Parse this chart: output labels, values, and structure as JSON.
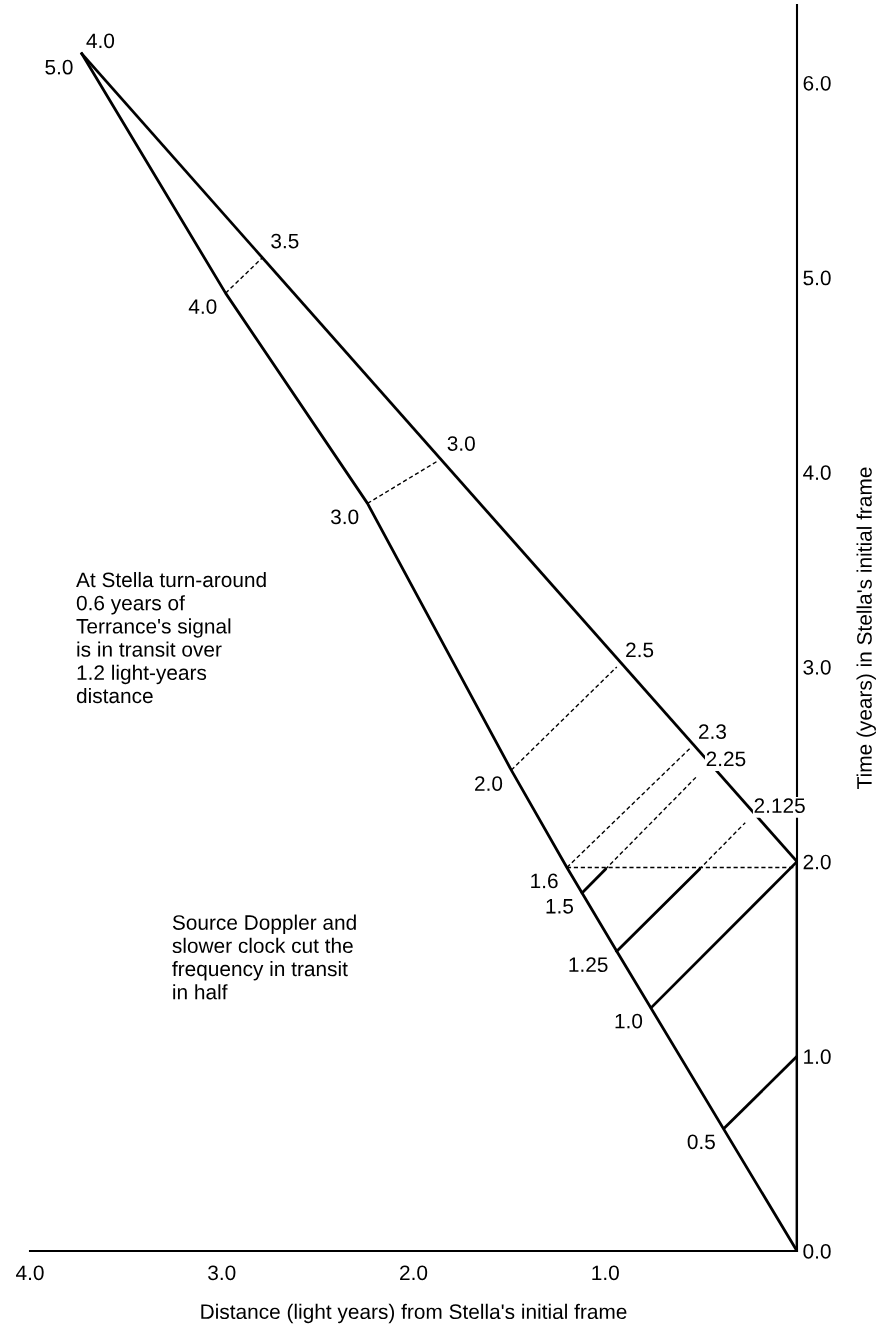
{
  "chart_data": {
    "type": "line",
    "xlabel": "Distance (light years) from Stella's initial frame",
    "ylabel": "Time (years) in Stella's initial frame",
    "xlim": [
      4.0,
      0
    ],
    "ylim": [
      0,
      6.4
    ],
    "xticks": [
      {
        "value": 4,
        "label": "4.0"
      },
      {
        "value": 3,
        "label": "3.0"
      },
      {
        "value": 2,
        "label": "2.0"
      },
      {
        "value": 1,
        "label": "1.0"
      }
    ],
    "yticks": [
      {
        "value": 0,
        "label": "0.0"
      },
      {
        "value": 1,
        "label": "1.0"
      },
      {
        "value": 2,
        "label": "2.0"
      },
      {
        "value": 3,
        "label": "3.0"
      },
      {
        "value": 4,
        "label": "4.0"
      },
      {
        "value": 5,
        "label": "5.0"
      },
      {
        "value": 6,
        "label": "6.0"
      }
    ],
    "series": [
      {
        "color": "#000000",
        "line_style": "solid",
        "x": [
          0,
          0.94,
          1.2,
          1.49,
          2.24,
          2.98,
          3.73
        ],
        "values": [
          0,
          1.54,
          1.97,
          2.47,
          3.84,
          4.92,
          6.15
        ]
      },
      {
        "color": "#000000",
        "line_style": "solid",
        "x": [
          0,
          3.73
        ],
        "values": [
          2.0,
          6.15
        ]
      },
      {
        "color": "#000000",
        "line_style": "solid",
        "x": [
          0,
          0
        ],
        "values": [
          0,
          2.0
        ]
      },
      {
        "color": "#000000",
        "line_style": "solid",
        "x": [
          0.38,
          0
        ],
        "values": [
          0.63,
          1.0
        ]
      },
      {
        "color": "#000000",
        "line_style": "solid",
        "x": [
          0.76,
          0
        ],
        "values": [
          1.25,
          2.0
        ]
      },
      {
        "color": "#000000",
        "line_style": "solid",
        "x": [
          0.94,
          0.51
        ],
        "values": [
          1.54,
          1.96
        ]
      },
      {
        "color": "#000000",
        "line_style": "dashed",
        "x": [
          0.51,
          0.27
        ],
        "values": [
          1.96,
          2.2
        ]
      },
      {
        "color": "#000000",
        "line_style": "solid",
        "x": [
          1.12,
          1.0
        ],
        "values": [
          1.84,
          1.96
        ]
      },
      {
        "color": "#000000",
        "line_style": "dashed",
        "x": [
          1.0,
          0.52
        ],
        "values": [
          1.96,
          2.44
        ]
      },
      {
        "color": "#000000",
        "line_style": "dashed",
        "x": [
          1.2,
          0.56
        ],
        "values": [
          1.97,
          2.58
        ]
      },
      {
        "color": "#000000",
        "line_style": "dashed",
        "x": [
          1.2,
          0
        ],
        "values": [
          1.97,
          1.97
        ]
      },
      {
        "color": "#000000",
        "line_style": "dashed",
        "x": [
          1.49,
          0.94
        ],
        "values": [
          2.47,
          3.0
        ]
      },
      {
        "color": "#000000",
        "line_style": "dashed",
        "x": [
          2.24,
          1.87
        ],
        "values": [
          3.84,
          4.06
        ]
      },
      {
        "color": "#000000",
        "line_style": "dashed",
        "x": [
          2.98,
          2.79
        ],
        "values": [
          4.92,
          5.1
        ]
      }
    ],
    "annotations": [
      "At Stella turn-around\n0.6 years of\nTerrance's signal\nis in transit over\n1.2 light-years\ndistance",
      "Source Doppler and\nslower clock cut the\nfrequency in transit\nin half",
      {
        "text": "0.5",
        "x": 0.38,
        "y": 0.63
      },
      {
        "text": "1.0",
        "x": 0.76,
        "y": 1.25
      },
      {
        "text": "1.25",
        "x": 0.94,
        "y": 1.54
      },
      {
        "text": "1.5",
        "x": 1.12,
        "y": 1.84
      },
      {
        "text": "1.6",
        "x": 1.2,
        "y": 1.97
      },
      {
        "text": "2.0",
        "x": 1.49,
        "y": 2.47
      },
      {
        "text": "3.0",
        "x": 2.24,
        "y": 3.84
      },
      {
        "text": "4.0",
        "x": 2.98,
        "y": 4.92
      },
      {
        "text": "5.0",
        "x": 3.73,
        "y": 6.15
      },
      {
        "text": "4.0",
        "x": 3.73,
        "y": 6.15
      },
      {
        "text": "2.125",
        "x": 0.27,
        "y": 2.2
      },
      {
        "text": "2.25",
        "x": 0.52,
        "y": 2.44
      },
      {
        "text": "2.3",
        "x": 0.56,
        "y": 2.58
      },
      {
        "text": "2.5",
        "x": 0.94,
        "y": 3.0
      },
      {
        "text": "3.0",
        "x": 1.87,
        "y": 4.06
      },
      {
        "text": "3.5",
        "x": 2.79,
        "y": 5.1
      }
    ]
  }
}
